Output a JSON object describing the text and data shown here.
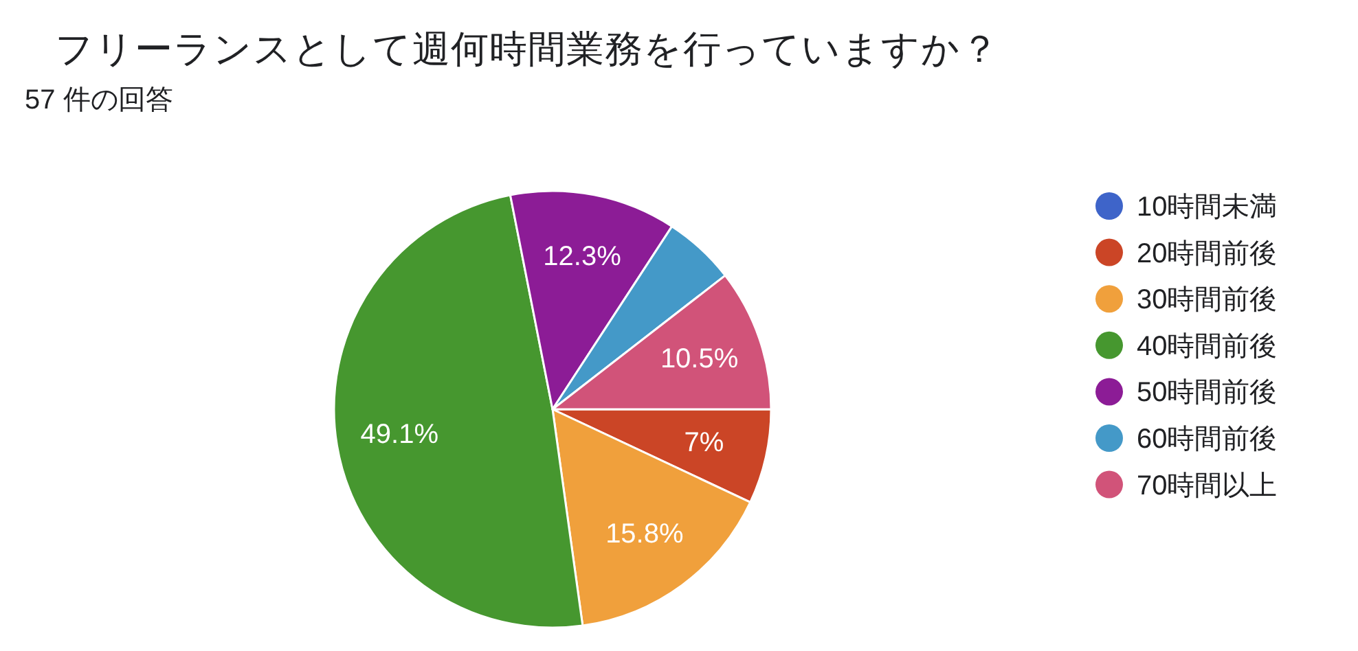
{
  "chart_data": {
    "type": "pie",
    "title": "フリーランスとして週何時間業務を行っていますか？",
    "subtitle": "57 件の回答",
    "categories": [
      "10時間未満",
      "20時間前後",
      "30時間前後",
      "40時間前後",
      "50時間前後",
      "60時間前後",
      "70時間以上"
    ],
    "values": [
      0,
      7,
      15.8,
      49.1,
      12.3,
      5.3,
      10.5
    ],
    "colors": [
      "#3e64c9",
      "#cb4526",
      "#f0a03c",
      "#46972f",
      "#8c1c96",
      "#4499c8",
      "#d15379"
    ],
    "value_labels": [
      null,
      "7%",
      "15.8%",
      "49.1%",
      "12.3%",
      null,
      "10.5%"
    ],
    "legend": "right"
  }
}
